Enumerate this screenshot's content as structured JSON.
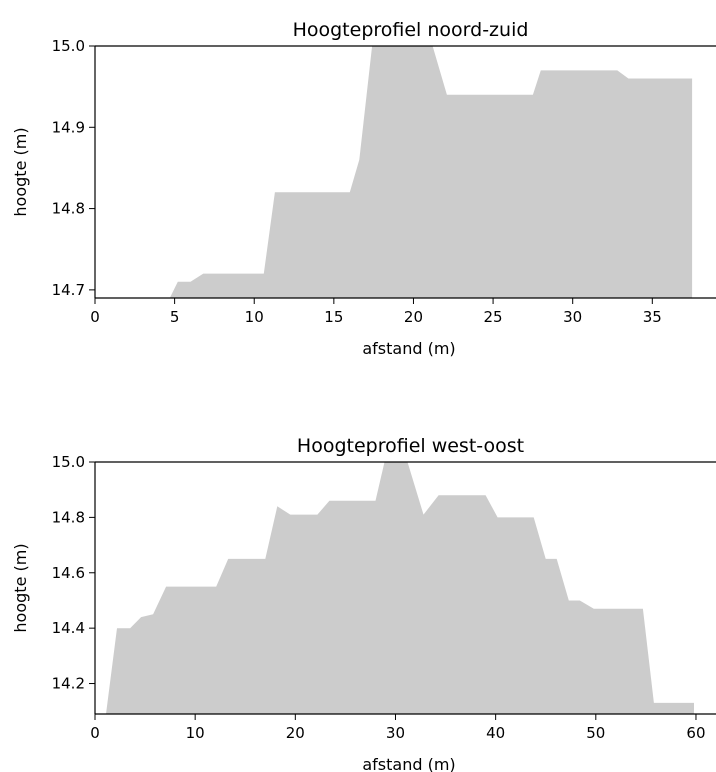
{
  "chart_data": [
    {
      "type": "area",
      "title": "Hoogteprofiel noord-zuid",
      "xlabel": "afstand (m)",
      "ylabel": "hoogte (m)",
      "xlim": [
        0,
        39
      ],
      "ylim": [
        14.69,
        15.0
      ],
      "xticks": [
        0,
        5,
        10,
        15,
        20,
        25,
        30,
        35
      ],
      "xtick_labels": [
        "0",
        "5",
        "10",
        "15",
        "20",
        "25",
        "30",
        "35"
      ],
      "yticks": [
        14.7,
        14.8,
        14.9,
        15.0
      ],
      "ytick_labels": [
        "14.7",
        "14.8",
        "14.9",
        "15.0"
      ],
      "fill_color": "#cccccc",
      "grid": false,
      "x": [
        0,
        4.7,
        5.2,
        6.0,
        6.8,
        10.6,
        11.3,
        16.0,
        16.6,
        17.4,
        21.2,
        22.1,
        27.5,
        28.0,
        32.8,
        33.5,
        37.5
      ],
      "y": [
        14.69,
        14.69,
        14.71,
        14.71,
        14.72,
        14.72,
        14.82,
        14.82,
        14.86,
        15.0,
        15.0,
        14.94,
        14.94,
        14.97,
        14.97,
        14.96,
        14.96
      ]
    },
    {
      "type": "area",
      "title": "Hoogteprofiel west-oost",
      "xlabel": "afstand (m)",
      "ylabel": "hoogte (m)",
      "xlim": [
        0,
        62
      ],
      "ylim": [
        14.09,
        15.0
      ],
      "xticks": [
        0,
        10,
        20,
        30,
        40,
        50,
        60
      ],
      "xtick_labels": [
        "0",
        "10",
        "20",
        "30",
        "40",
        "50",
        "60"
      ],
      "yticks": [
        14.2,
        14.4,
        14.6,
        14.8,
        15.0
      ],
      "ytick_labels": [
        "14.2",
        "14.4",
        "14.6",
        "14.8",
        "15.0"
      ],
      "fill_color": "#cccccc",
      "grid": false,
      "x": [
        0,
        1.1,
        2.2,
        3.5,
        4.6,
        5.8,
        7.1,
        12.1,
        13.3,
        17.0,
        18.2,
        19.5,
        22.2,
        23.4,
        28.0,
        28.9,
        31.2,
        32.8,
        34.3,
        39.0,
        40.2,
        43.8,
        45.0,
        46.1,
        47.3,
        48.4,
        49.8,
        54.7,
        55.8,
        59.8
      ],
      "y": [
        14.09,
        14.09,
        14.4,
        14.4,
        14.44,
        14.45,
        14.55,
        14.55,
        14.65,
        14.65,
        14.84,
        14.81,
        14.81,
        14.86,
        14.86,
        15.0,
        15.0,
        14.81,
        14.88,
        14.88,
        14.8,
        14.8,
        14.65,
        14.65,
        14.5,
        14.5,
        14.47,
        14.47,
        14.13,
        14.13
      ]
    }
  ]
}
